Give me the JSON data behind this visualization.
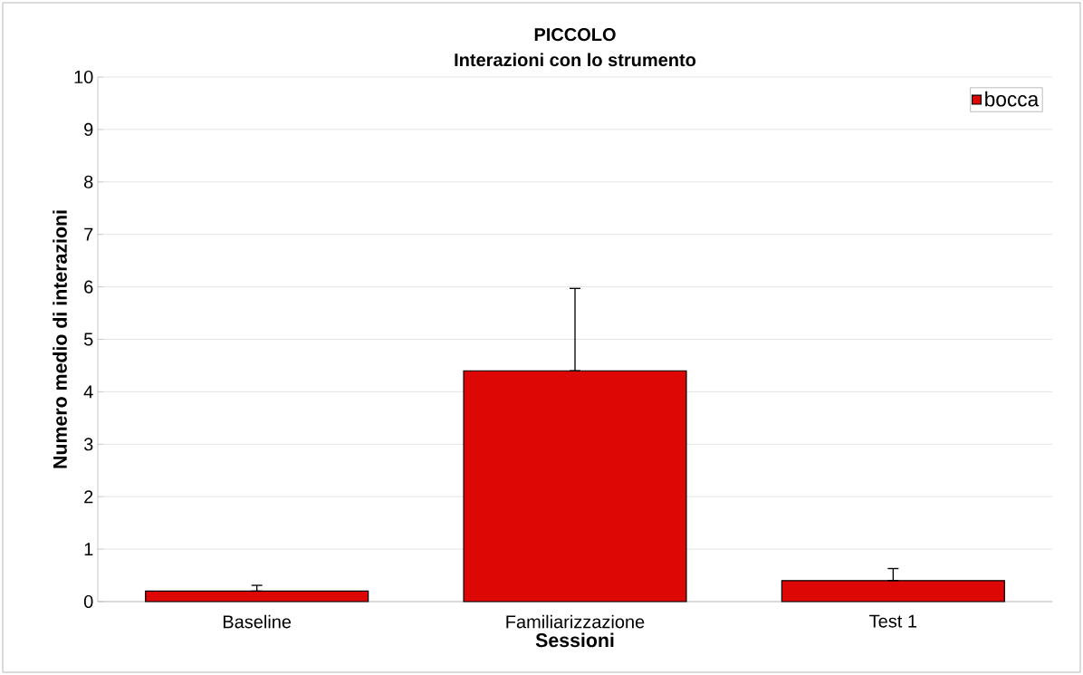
{
  "chart_data": {
    "type": "bar",
    "title": "PICCOLO",
    "subtitle": "Interazioni con lo strumento",
    "xlabel": "Sessioni",
    "ylabel": "Numero medio di interazioni",
    "categories": [
      "Baseline",
      "Familiarizzazione",
      "Test 1"
    ],
    "series": [
      {
        "name": "bocca",
        "color": "#dd0806",
        "values": [
          0.2,
          4.4,
          0.4
        ],
        "errors": [
          [
            0.2,
            0.31
          ],
          [
            4.4,
            5.97
          ],
          [
            0.4,
            0.63
          ]
        ]
      }
    ],
    "ylim": [
      0,
      10
    ],
    "yticks": [
      0,
      1,
      2,
      3,
      4,
      5,
      6,
      7,
      8,
      9,
      10
    ],
    "grid": "y",
    "legend": "top right"
  }
}
